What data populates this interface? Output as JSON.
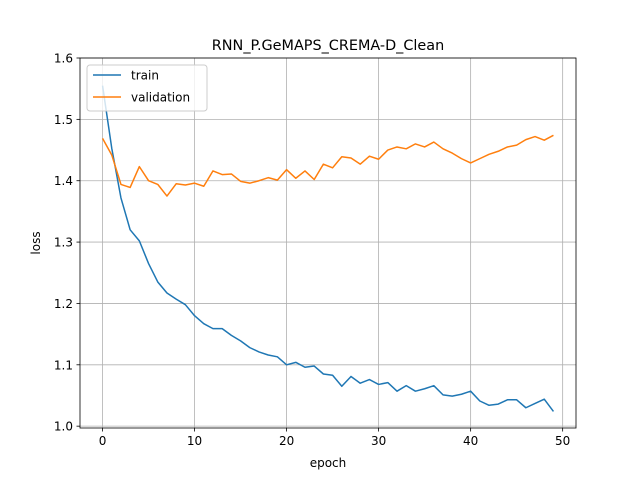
{
  "chart_data": {
    "type": "line",
    "title": "RNN_P.GeMAPS_CREMA-D_Clean",
    "xlabel": "epoch",
    "ylabel": "loss",
    "xlim": [
      -2.45,
      51.45
    ],
    "ylim": [
      0.997,
      1.6
    ],
    "xticks": [
      0,
      10,
      20,
      30,
      40,
      50
    ],
    "yticks": [
      1.0,
      1.1,
      1.2,
      1.3,
      1.4,
      1.5,
      1.6
    ],
    "xtick_labels": [
      "0",
      "10",
      "20",
      "30",
      "40",
      "50"
    ],
    "ytick_labels": [
      "1.0",
      "1.1",
      "1.2",
      "1.3",
      "1.4",
      "1.5",
      "1.6"
    ],
    "grid": true,
    "legend_position": "upper-left",
    "x": [
      0,
      1,
      2,
      3,
      4,
      5,
      6,
      7,
      8,
      9,
      10,
      11,
      12,
      13,
      14,
      15,
      16,
      17,
      18,
      19,
      20,
      21,
      22,
      23,
      24,
      25,
      26,
      27,
      28,
      29,
      30,
      31,
      32,
      33,
      34,
      35,
      36,
      37,
      38,
      39,
      40,
      41,
      42,
      43,
      44,
      45,
      46,
      47,
      48,
      49
    ],
    "series": [
      {
        "name": "train",
        "color": "#1f77b4",
        "values": [
          1.555,
          1.453,
          1.372,
          1.32,
          1.302,
          1.265,
          1.235,
          1.217,
          1.207,
          1.198,
          1.18,
          1.167,
          1.159,
          1.159,
          1.148,
          1.139,
          1.128,
          1.121,
          1.116,
          1.113,
          1.1,
          1.104,
          1.096,
          1.098,
          1.085,
          1.083,
          1.065,
          1.081,
          1.07,
          1.076,
          1.068,
          1.071,
          1.057,
          1.066,
          1.057,
          1.061,
          1.066,
          1.051,
          1.049,
          1.052,
          1.057,
          1.041,
          1.034,
          1.036,
          1.043,
          1.043,
          1.03,
          1.037,
          1.044,
          1.024
        ]
      },
      {
        "name": "validation",
        "color": "#ff7f0e",
        "values": [
          1.469,
          1.442,
          1.394,
          1.389,
          1.423,
          1.4,
          1.394,
          1.375,
          1.395,
          1.393,
          1.396,
          1.391,
          1.416,
          1.41,
          1.411,
          1.399,
          1.396,
          1.4,
          1.405,
          1.401,
          1.418,
          1.404,
          1.416,
          1.402,
          1.427,
          1.421,
          1.439,
          1.437,
          1.427,
          1.44,
          1.435,
          1.45,
          1.455,
          1.452,
          1.46,
          1.455,
          1.463,
          1.452,
          1.445,
          1.436,
          1.429,
          1.436,
          1.443,
          1.448,
          1.455,
          1.458,
          1.467,
          1.472,
          1.466,
          1.474
        ]
      }
    ]
  }
}
